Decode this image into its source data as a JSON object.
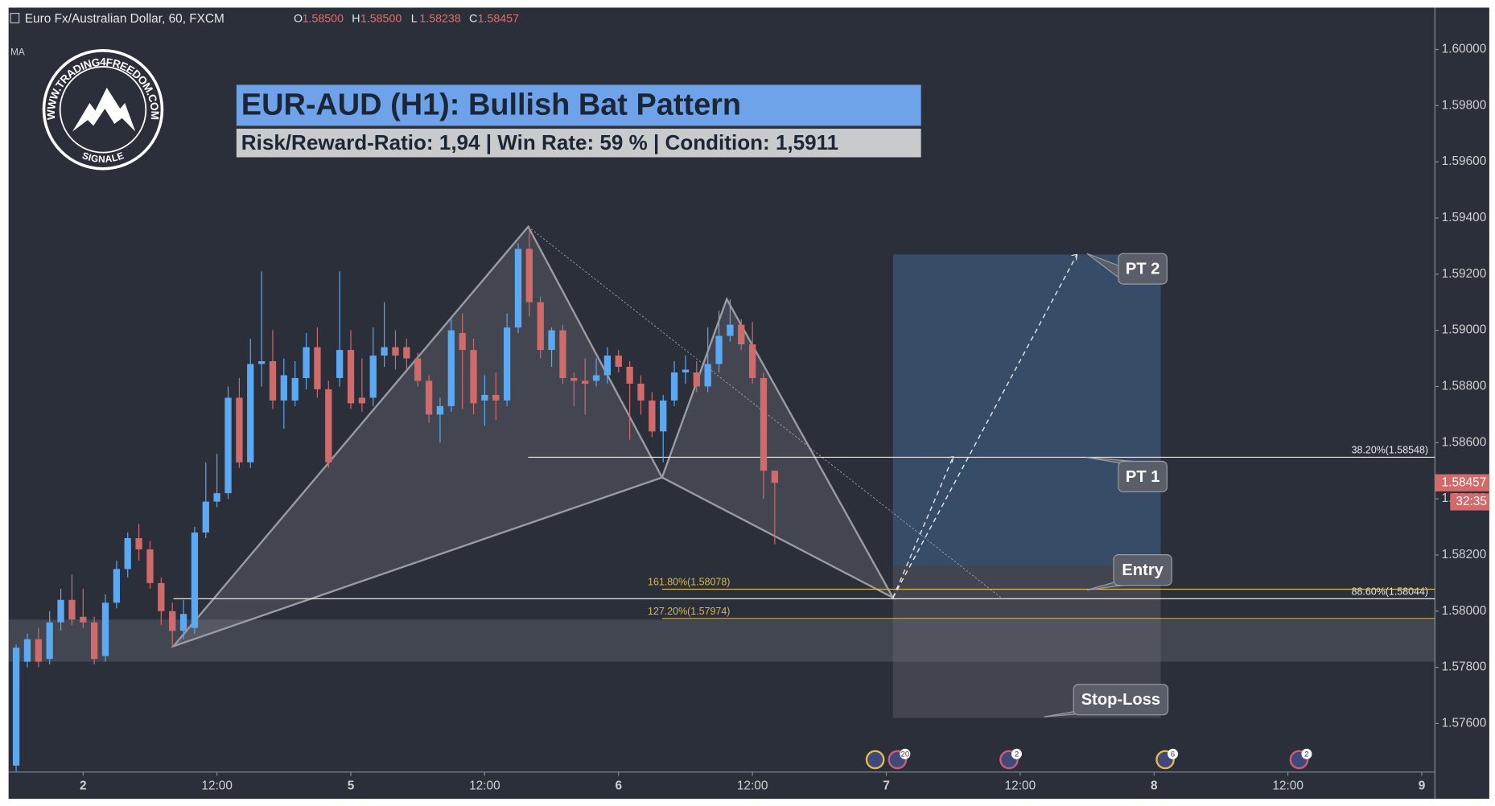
{
  "chart_data": {
    "type": "candlestick",
    "symbol": "Euro Fx/Australian Dollar, 60, FXCM",
    "indicator": "MA",
    "ohlc": [
      {
        "label": "O",
        "value": "1.58500"
      },
      {
        "label": "H",
        "value": "1.58500"
      },
      {
        "label": "L",
        "value": "1.58238"
      },
      {
        "label": "C",
        "value": "1.58457"
      }
    ],
    "logo": {
      "text": "WWW.TRADING4FREEDOM.COM",
      "subtext": "SIGNALE"
    },
    "title": "EUR-AUD (H1): Bullish Bat Pattern",
    "subtitle": "Risk/Reward-Ratio: 1,94 | Win Rate: 59 % | Condition: 1,5911",
    "up_color": "#5aa9f2",
    "down_color": "#cf6b6b",
    "open": [
      1.5745,
      1.5782,
      1.579,
      1.5783,
      1.5796,
      1.5804,
      1.5798,
      1.5796,
      1.5784,
      1.5803,
      1.5815,
      1.5826,
      1.5822,
      1.581,
      1.58,
      1.5793,
      1.5794,
      1.5828,
      1.5839,
      1.5842,
      1.5876,
      1.5853,
      1.5888,
      1.5889,
      1.5875,
      1.5875,
      1.5883,
      1.5894,
      1.5879,
      1.5883,
      1.5893,
      1.5876,
      1.5876,
      1.5891,
      1.5894,
      1.5894,
      1.589,
      1.5882,
      1.587,
      1.5873,
      1.5899,
      1.5893,
      1.5875,
      1.5877,
      1.5875,
      1.5901,
      1.5929,
      1.591,
      1.5893,
      1.59,
      1.5883,
      1.5882,
      1.5882,
      1.5884,
      1.5891,
      1.5887,
      1.5881,
      1.5875,
      1.5864,
      1.5875,
      1.5885,
      1.5885,
      1.588,
      1.5888,
      1.5898,
      1.5902,
      1.5895,
      1.5883,
      1.585
    ],
    "high": [
      1.5788,
      1.5792,
      1.5794,
      1.58,
      1.5808,
      1.5813,
      1.5808,
      1.5798,
      1.5806,
      1.5818,
      1.5828,
      1.5831,
      1.5825,
      1.5812,
      1.5803,
      1.5804,
      1.583,
      1.5853,
      1.5856,
      1.588,
      1.5883,
      1.5897,
      1.5921,
      1.59,
      1.589,
      1.5889,
      1.5899,
      1.5901,
      1.5882,
      1.5921,
      1.59,
      1.589,
      1.5901,
      1.591,
      1.59,
      1.5897,
      1.5892,
      1.5884,
      1.5876,
      1.5904,
      1.5906,
      1.5897,
      1.5884,
      1.5885,
      1.5906,
      1.5931,
      1.5937,
      1.5912,
      1.5901,
      1.5902,
      1.5885,
      1.589,
      1.589,
      1.5894,
      1.5893,
      1.5889,
      1.5884,
      1.5878,
      1.5877,
      1.5889,
      1.5891,
      1.5889,
      1.5901,
      1.5907,
      1.5911,
      1.5904,
      1.5903,
      1.5885,
      1.585
    ],
    "low": [
      1.5743,
      1.578,
      1.578,
      1.5781,
      1.5793,
      1.5795,
      1.5794,
      1.5781,
      1.5782,
      1.5801,
      1.5812,
      1.5818,
      1.5808,
      1.5795,
      1.5787,
      1.579,
      1.5792,
      1.5826,
      1.5837,
      1.584,
      1.5851,
      1.5851,
      1.588,
      1.5872,
      1.5865,
      1.5873,
      1.5879,
      1.5876,
      1.5851,
      1.588,
      1.5872,
      1.5871,
      1.5873,
      1.5887,
      1.5886,
      1.5885,
      1.588,
      1.5867,
      1.586,
      1.5871,
      1.5872,
      1.587,
      1.5866,
      1.5868,
      1.5873,
      1.5899,
      1.5905,
      1.589,
      1.5887,
      1.5881,
      1.5873,
      1.587,
      1.588,
      1.5881,
      1.5885,
      1.5861,
      1.587,
      1.5862,
      1.5853,
      1.5873,
      1.5881,
      1.5878,
      1.5878,
      1.5885,
      1.5896,
      1.5893,
      1.5881,
      1.584,
      1.58238
    ],
    "close": [
      1.5787,
      1.579,
      1.5782,
      1.5796,
      1.5804,
      1.5797,
      1.5796,
      1.5783,
      1.5803,
      1.5815,
      1.5826,
      1.5822,
      1.581,
      1.58,
      1.5793,
      1.5799,
      1.5828,
      1.5839,
      1.5842,
      1.5876,
      1.5853,
      1.5888,
      1.5889,
      1.5875,
      1.5884,
      1.5883,
      1.5894,
      1.5879,
      1.5853,
      1.5893,
      1.5874,
      1.5874,
      1.5891,
      1.5894,
      1.5891,
      1.589,
      1.5882,
      1.587,
      1.5873,
      1.59,
      1.5893,
      1.5874,
      1.5877,
      1.5875,
      1.5901,
      1.5929,
      1.591,
      1.5893,
      1.59,
      1.5883,
      1.5882,
      1.5881,
      1.5884,
      1.5891,
      1.5887,
      1.5881,
      1.5875,
      1.5864,
      1.5875,
      1.5885,
      1.5886,
      1.588,
      1.5888,
      1.5898,
      1.5902,
      1.5895,
      1.5883,
      1.585,
      1.58457
    ],
    "xlim": [
      -0.68,
      127.18
    ],
    "xticks": [
      {
        "value": 6,
        "label": "2"
      },
      {
        "value": 18,
        "label": "12:00"
      },
      {
        "value": 30,
        "label": "5"
      },
      {
        "value": 42,
        "label": "12:00"
      },
      {
        "value": 54,
        "label": "6"
      },
      {
        "value": 66,
        "label": "12:00"
      },
      {
        "value": 78,
        "label": "7"
      },
      {
        "value": 90,
        "label": "12:00"
      },
      {
        "value": 102,
        "label": "8"
      },
      {
        "value": 114,
        "label": "12:00"
      },
      {
        "value": 126,
        "label": "9"
      }
    ],
    "ylim": [
      1.57427,
      1.60149
    ],
    "yticks": [
      {
        "value": 1.576,
        "label": "1.57600"
      },
      {
        "value": 1.578,
        "label": "1.57800"
      },
      {
        "value": 1.58,
        "label": "1.58000"
      },
      {
        "value": 1.582,
        "label": "1.58200"
      },
      {
        "value": 1.584,
        "label": "1.58400"
      },
      {
        "value": 1.586,
        "label": "1.58600"
      },
      {
        "value": 1.588,
        "label": "1.58800"
      },
      {
        "value": 1.59,
        "label": "1.59000"
      },
      {
        "value": 1.592,
        "label": "1.59200"
      },
      {
        "value": 1.594,
        "label": "1.59400"
      },
      {
        "value": 1.596,
        "label": "1.59600"
      },
      {
        "value": 1.598,
        "label": "1.59800"
      },
      {
        "value": 1.6,
        "label": "1.60000"
      }
    ],
    "grid": false,
    "price_label": {
      "value": 1.58457,
      "label": "1.58457"
    },
    "countdown": "32:35",
    "zone": [
      1.5782,
      1.5797
    ],
    "pattern": {
      "x": [
        14.1,
        45.9,
        57.9,
        63.7,
        78.6
      ],
      "y": [
        1.57875,
        1.59369,
        1.58476,
        1.59111,
        1.58048
      ]
    },
    "levels": [
      {
        "label": "38.20%(1.58548)",
        "value": 1.58548,
        "color": "#e8e8e8"
      },
      {
        "label": "88.60%(1.58044)",
        "value": 1.58044,
        "color": "#e8e8e8"
      },
      {
        "label": "161.80%(1.58078)",
        "value": 1.58078,
        "color": "#d8b84a"
      },
      {
        "label": "127.20%(1.57974)",
        "value": 1.57974,
        "color": "#d8b84a"
      }
    ],
    "position": {
      "start": 78.6,
      "end": 102.6,
      "target": 1.5927,
      "entry": 1.5816,
      "stop": 1.5762
    },
    "arrows": [
      {
        "x": 84,
        "y": 1.5855
      },
      {
        "x": 95.1,
        "y": 1.5927
      }
    ],
    "annotations": {
      "pt2": "PT 2",
      "pt1": "PT 1",
      "entry": "Entry",
      "stop": "Stop-Loss"
    },
    "events": [
      {
        "x": 77
      },
      {
        "x": 79,
        "label": 20
      },
      {
        "x": 89,
        "label": 2
      },
      {
        "x": 103,
        "label": 6
      },
      {
        "x": 115,
        "label": 2
      }
    ]
  }
}
